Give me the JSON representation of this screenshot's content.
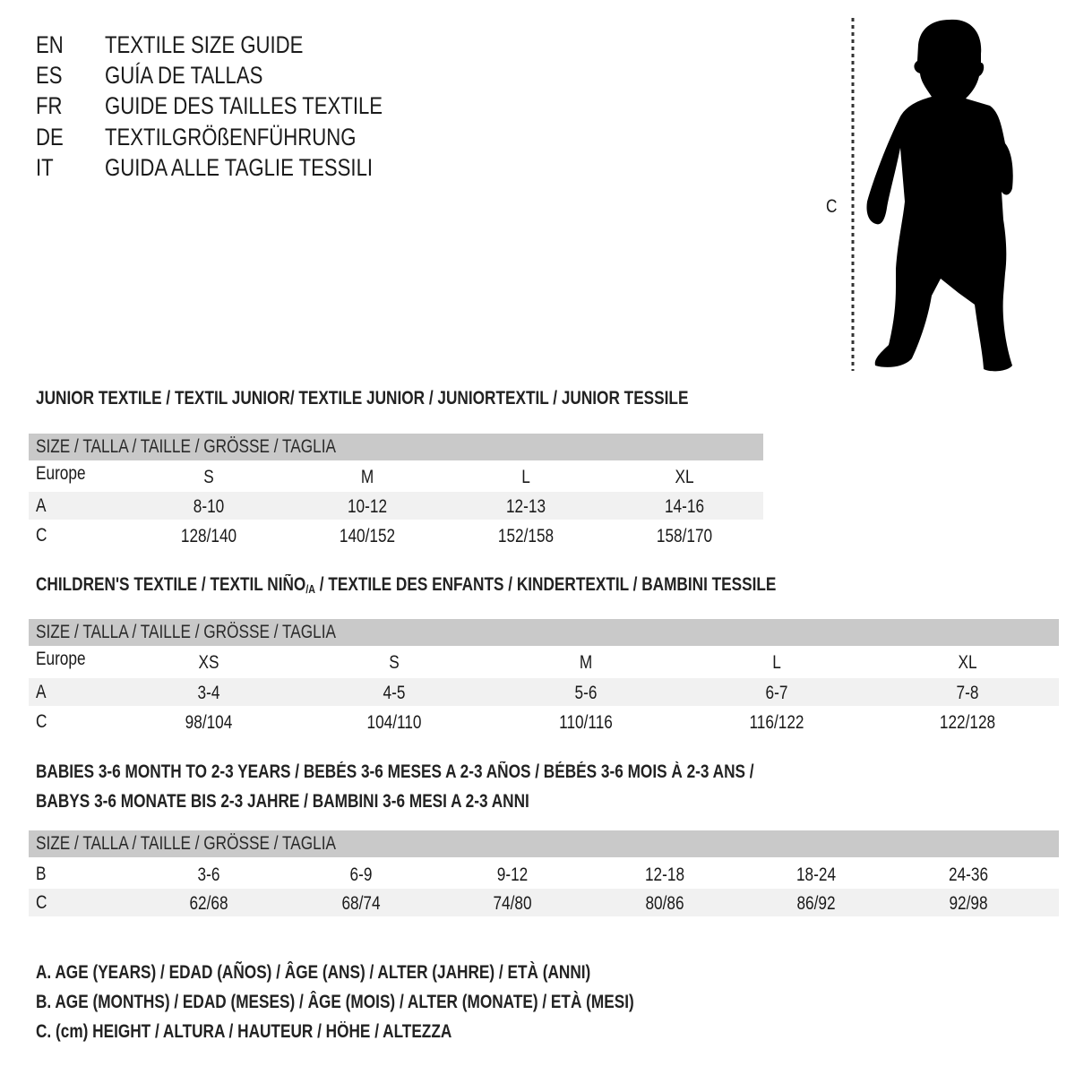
{
  "languages": [
    {
      "code": "EN",
      "title": "TEXTILE SIZE GUIDE"
    },
    {
      "code": "ES",
      "title": "GUÍA DE TALLAS"
    },
    {
      "code": "FR",
      "title": "GUIDE DES TAILLES TEXTILE"
    },
    {
      "code": "DE",
      "title": "TEXTILGRÖßENFÜHRUNG"
    },
    {
      "code": "IT",
      "title": "GUIDA ALLE TAGLIE TESSILI"
    }
  ],
  "figure": {
    "measure_label": "C",
    "icon": "child-silhouette-icon"
  },
  "colors": {
    "header_band": "#c9c9c9",
    "stripe": "#f1f1f1",
    "text": "#1a1a1a"
  },
  "sections": [
    {
      "title_lines": [
        "JUNIOR TEXTILE / TEXTIL JUNIOR/ TEXTILE JUNIOR / JUNIORTEXTIL / JUNIOR TESSILE"
      ],
      "header": "SIZE / TALLA / TAILLE / GRÖSSE / TAGLIA",
      "rows": [
        {
          "label": "Europe",
          "values": [
            "S",
            "M",
            "L",
            "XL"
          ]
        },
        {
          "label": "A",
          "values": [
            "8-10",
            "10-12",
            "12-13",
            "14-16"
          ]
        },
        {
          "label": "C",
          "values": [
            "128/140",
            "140/152",
            "152/158",
            "158/170"
          ]
        }
      ]
    },
    {
      "title_parts": [
        "CHILDREN'S TEXTILE / TEXTIL NIÑO",
        "/A",
        " / TEXTILE DES ENFANTS / KINDERTEXTIL / BAMBINI TESSILE"
      ],
      "header": "SIZE / TALLA / TAILLE / GRÖSSE / TAGLIA",
      "rows": [
        {
          "label": "Europe",
          "values": [
            "XS",
            "S",
            "M",
            "L",
            "XL"
          ]
        },
        {
          "label": "A",
          "values": [
            "3-4",
            "4-5",
            "5-6",
            "6-7",
            "7-8"
          ]
        },
        {
          "label": "C",
          "values": [
            "98/104",
            "104/110",
            "110/116",
            "116/122",
            "122/128"
          ]
        }
      ]
    },
    {
      "title_lines": [
        "BABIES 3-6 MONTH TO 2-3 YEARS / BEBÉS 3-6 MESES A 2-3 AÑOS / BÉBÉS 3-6 MOIS À 2-3 ANS /",
        "BABYS 3-6 MONATE BIS 2-3 JAHRE / BAMBINI 3-6 MESI A 2-3 ANNI"
      ],
      "header": "SIZE / TALLA / TAILLE / GRÖSSE / TAGLIA",
      "rows": [
        {
          "label": "B",
          "values": [
            "3-6",
            "6-9",
            "9-12",
            "12-18",
            "18-24",
            "24-36"
          ]
        },
        {
          "label": "C",
          "values": [
            "62/68",
            "68/74",
            "74/80",
            "80/86",
            "86/92",
            "92/98"
          ]
        }
      ]
    }
  ],
  "legend": [
    "A. AGE (YEARS) / EDAD (AÑOS) / ÂGE (ANS) / ALTER (JAHRE) / ETÀ (ANNI)",
    "B. AGE (MONTHS) / EDAD (MESES) / ÂGE (MOIS) / ALTER (MONATE) / ETÀ (MESI)",
    "C. (cm) HEIGHT / ALTURA / HAUTEUR / HÖHE / ALTEZZA"
  ]
}
